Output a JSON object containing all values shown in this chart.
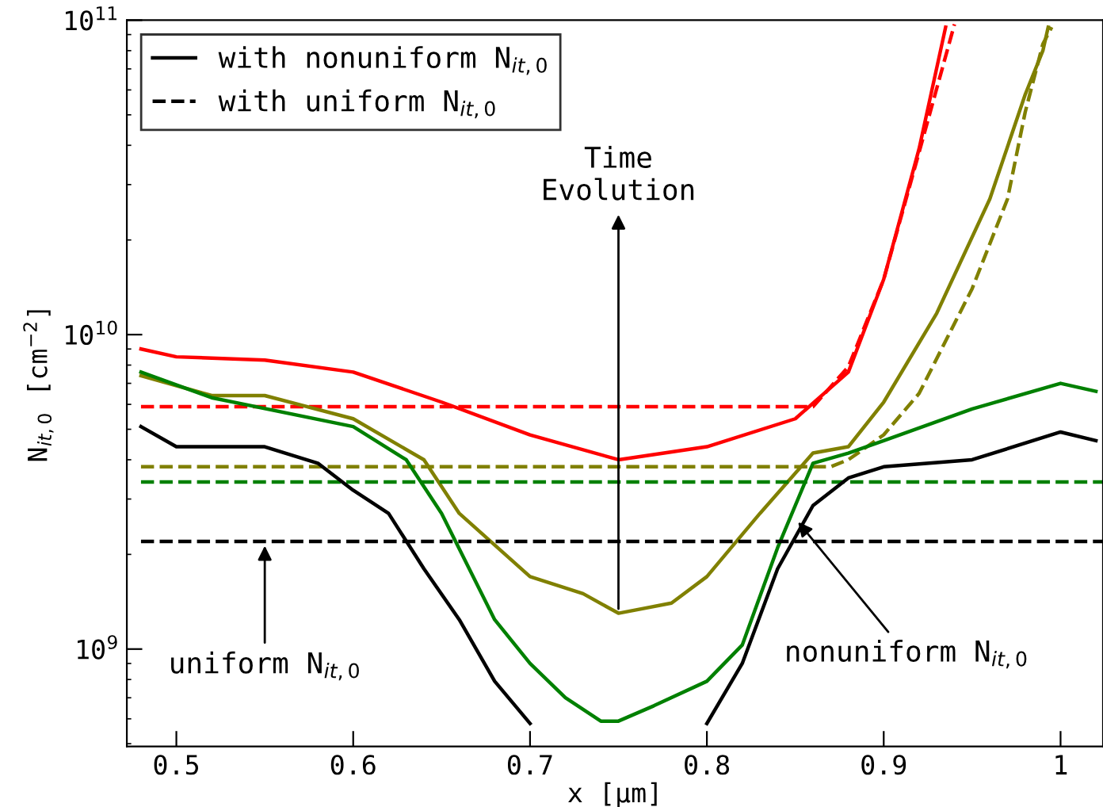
{
  "chart_data": {
    "type": "line",
    "xlabel": "x [μm]",
    "ylabel": "N$_{it,0}$ [cm$^{−2}$]",
    "log": "y",
    "xlim": [
      0.472,
      1.024
    ],
    "ylim": [
      490000000.0,
      100000000000.0
    ],
    "xticks": [
      0.5,
      0.6,
      0.7,
      0.8,
      0.9,
      1
    ],
    "yticks": [
      {
        "value": 1000000000.0,
        "label": "10$^{9}$"
      },
      {
        "value": 10000000000.0,
        "label": "10$^{10}$"
      },
      {
        "value": 100000000000.0,
        "label": "10$^{11}$"
      }
    ],
    "grid": false,
    "legend": "top left",
    "series": [
      {
        "color": "#ff0000",
        "line_style": "solid",
        "x": [
          0.48,
          0.5,
          0.55,
          0.6,
          0.65,
          0.7,
          0.75,
          0.8,
          0.85,
          0.88,
          0.9,
          0.92,
          0.935
        ],
        "values": [
          9000000000.0,
          8500000000.0,
          8300000000.0,
          7600000000.0,
          6100000000.0,
          4800000000.0,
          4000000000.0,
          4400000000.0,
          5400000000.0,
          7600000000.0,
          15000000000.0,
          39000000000.0,
          95000000000.0
        ]
      },
      {
        "color": "#ff0000",
        "line_style": "dashed",
        "x": [
          0.48,
          0.86,
          0.88,
          0.9,
          0.92,
          0.94
        ],
        "values": [
          5900000000.0,
          5900000000.0,
          7900000000.0,
          15000000000.0,
          38000000000.0,
          97000000000.0
        ]
      },
      {
        "color": "#808000",
        "line_style": "solid",
        "x": [
          0.48,
          0.52,
          0.55,
          0.6,
          0.64,
          0.66,
          0.7,
          0.73,
          0.75,
          0.78,
          0.8,
          0.83,
          0.86,
          0.88,
          0.9,
          0.93,
          0.96,
          0.98,
          0.99,
          0.993
        ],
        "values": [
          7400000000.0,
          6400000000.0,
          6400000000.0,
          5400000000.0,
          4000000000.0,
          2700000000.0,
          1700000000.0,
          1500000000.0,
          1300000000.0,
          1400000000.0,
          1700000000.0,
          2700000000.0,
          4200000000.0,
          4400000000.0,
          6100000000.0,
          11700000000.0,
          27000000000.0,
          58000000000.0,
          80000000000.0,
          95000000000.0
        ]
      },
      {
        "color": "#808000",
        "line_style": "dashed",
        "x": [
          0.48,
          0.87,
          0.88,
          0.9,
          0.92,
          0.95,
          0.97,
          0.98,
          0.99,
          0.995
        ],
        "values": [
          3800000000.0,
          3800000000.0,
          4000000000.0,
          4800000000.0,
          6500000000.0,
          14000000000.0,
          27000000000.0,
          51000000000.0,
          84000000000.0,
          95000000000.0
        ]
      },
      {
        "color": "#008000",
        "line_style": "solid",
        "x": [
          0.48,
          0.52,
          0.6,
          0.63,
          0.65,
          0.68,
          0.7,
          0.72,
          0.74,
          0.75,
          0.77,
          0.8,
          0.82,
          0.84,
          0.86,
          0.88,
          0.9,
          0.95,
          1.0,
          1.02
        ],
        "values": [
          7600000000.0,
          6300000000.0,
          5100000000.0,
          4000000000.0,
          2700000000.0,
          1240000000.0,
          900000000.0,
          700000000.0,
          590000000.0,
          590000000.0,
          660000000.0,
          790000000.0,
          1030000000.0,
          2100000000.0,
          3900000000.0,
          4200000000.0,
          4600000000.0,
          5800000000.0,
          7000000000.0,
          6600000000.0
        ]
      },
      {
        "color": "#008000",
        "line_style": "dashed",
        "x": [
          0.48,
          1.024
        ],
        "values": [
          3400000000.0,
          3400000000.0
        ]
      },
      {
        "name": "with nonuniform N$_{it,0}$",
        "color": "#000000",
        "line_style": "solid",
        "x": [
          0.48,
          0.5,
          0.55,
          0.58,
          0.6,
          0.62,
          0.64,
          0.66,
          0.68,
          0.7,
          0.72,
          0.78,
          0.8,
          0.82,
          0.84,
          0.86,
          0.88,
          0.9,
          0.95,
          1.0,
          1.02
        ],
        "values": [
          5100000000.0,
          4400000000.0,
          4400000000.0,
          3900000000.0,
          3200000000.0,
          2700000000.0,
          1800000000.0,
          1240000000.0,
          790000000.0,
          580000000.0,
          null,
          null,
          580000000.0,
          900000000.0,
          1800000000.0,
          2860000000.0,
          3500000000.0,
          3800000000.0,
          4000000000.0,
          4900000000.0,
          4600000000.0
        ]
      },
      {
        "name": "with uniform N$_{it,0}$",
        "color": "#000000",
        "line_style": "dashed",
        "x": [
          0.48,
          1.024
        ],
        "values": [
          2200000000.0,
          2200000000.0
        ]
      }
    ],
    "annotations": [
      {
        "text": "Time\nEvolution",
        "x": 0.75,
        "y": 1300000000.0
      },
      {
        "text": "uniform N$_{it,0}$",
        "x": 0.55,
        "y": 2200000000.0
      },
      {
        "text": "nonuniform N$_{it,0}$",
        "x": 0.85,
        "y": 2600000000.0
      }
    ]
  }
}
